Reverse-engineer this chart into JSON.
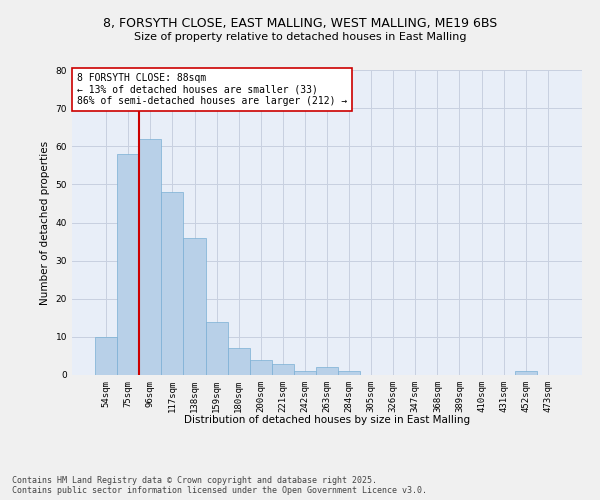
{
  "title_line1": "8, FORSYTH CLOSE, EAST MALLING, WEST MALLING, ME19 6BS",
  "title_line2": "Size of property relative to detached houses in East Malling",
  "xlabel": "Distribution of detached houses by size in East Malling",
  "ylabel": "Number of detached properties",
  "categories": [
    "54sqm",
    "75sqm",
    "96sqm",
    "117sqm",
    "138sqm",
    "159sqm",
    "180sqm",
    "200sqm",
    "221sqm",
    "242sqm",
    "263sqm",
    "284sqm",
    "305sqm",
    "326sqm",
    "347sqm",
    "368sqm",
    "389sqm",
    "410sqm",
    "431sqm",
    "452sqm",
    "473sqm"
  ],
  "values": [
    10,
    58,
    62,
    48,
    36,
    14,
    7,
    4,
    3,
    1,
    2,
    1,
    0,
    0,
    0,
    0,
    0,
    0,
    0,
    1,
    0
  ],
  "bar_color": "#b8d0e8",
  "bar_edge_color": "#7aafd4",
  "vline_x": 1.5,
  "vline_color": "#cc0000",
  "annotation_text": "8 FORSYTH CLOSE: 88sqm\n← 13% of detached houses are smaller (33)\n86% of semi-detached houses are larger (212) →",
  "annotation_box_color": "#ffffff",
  "annotation_box_edge": "#cc0000",
  "ylim": [
    0,
    80
  ],
  "yticks": [
    0,
    10,
    20,
    30,
    40,
    50,
    60,
    70,
    80
  ],
  "grid_color": "#c8d0e0",
  "bg_color": "#e8eef8",
  "fig_bg_color": "#f0f0f0",
  "footer_line1": "Contains HM Land Registry data © Crown copyright and database right 2025.",
  "footer_line2": "Contains public sector information licensed under the Open Government Licence v3.0.",
  "title_fontsize": 9,
  "subtitle_fontsize": 8,
  "axis_label_fontsize": 7.5,
  "tick_fontsize": 6.5,
  "annotation_fontsize": 7,
  "footer_fontsize": 6
}
